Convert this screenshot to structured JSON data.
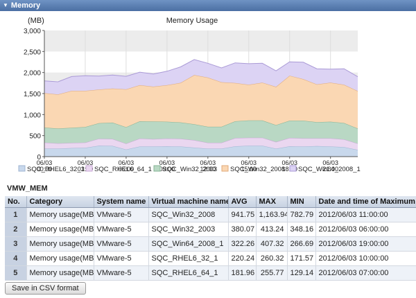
{
  "panel": {
    "title": "Memory"
  },
  "chart_data": {
    "type": "area",
    "stacked": true,
    "title": "Memory Usage",
    "ylabel": "(MB)",
    "ylim": [
      0,
      3000
    ],
    "yticks": [
      0,
      500,
      1000,
      1500,
      2000,
      2500,
      3000
    ],
    "ytick_labels": [
      "0",
      "500",
      "1,000",
      "1,500",
      "2,000",
      "2,500",
      "3,000"
    ],
    "xtick_labels": [
      "06/03 00:00",
      "06/03 03:00",
      "06/03 06:00",
      "06/03 09:00",
      "06/03 12:00",
      "06/03 15:00",
      "06/03 18:00",
      "06/03 21:00"
    ],
    "xtick_positions": [
      0,
      3,
      6,
      9,
      12,
      15,
      18,
      21
    ],
    "x": [
      0,
      1,
      2,
      3,
      4,
      5,
      6,
      7,
      8,
      9,
      10,
      11,
      12,
      13,
      14,
      15,
      16,
      17,
      18,
      19,
      20,
      21,
      22,
      23
    ],
    "threshold_bands": [
      {
        "from": 1800,
        "to": 2000,
        "color": "#ececec"
      },
      {
        "from": 2500,
        "to": 3000,
        "color": "#ececec"
      }
    ],
    "legend_position": "bottom",
    "series": [
      {
        "name": "SQC_RHEL6_32_1",
        "color": "#c8d8ec",
        "stroke": "#9fb5d2",
        "values": [
          190,
          190,
          205,
          210,
          260,
          255,
          170,
          240,
          240,
          245,
          240,
          215,
          190,
          190,
          245,
          260,
          260,
          190,
          245,
          240,
          250,
          240,
          225,
          160
        ]
      },
      {
        "name": "SQC_RHEL6_64_1",
        "color": "#ead7f0",
        "stroke": "#c8a8d6",
        "values": [
          145,
          125,
          120,
          125,
          165,
          165,
          140,
          190,
          175,
          185,
          185,
          175,
          140,
          140,
          195,
          190,
          190,
          160,
          200,
          195,
          185,
          195,
          185,
          150
        ]
      },
      {
        "name": "SQC_Win32_2003",
        "color": "#b9d8c4",
        "stroke": "#86b395",
        "values": [
          355,
          355,
          360,
          370,
          370,
          390,
          390,
          410,
          420,
          400,
          390,
          380,
          380,
          380,
          400,
          410,
          410,
          400,
          410,
          420,
          385,
          395,
          390,
          360
        ]
      },
      {
        "name": "SQC_Win32_2008",
        "color": "#fad7b3",
        "stroke": "#e0aa7a",
        "values": [
          820,
          810,
          880,
          860,
          800,
          810,
          900,
          860,
          830,
          870,
          940,
          1170,
          1170,
          1060,
          910,
          850,
          900,
          910,
          1070,
          990,
          900,
          930,
          910,
          890
        ]
      },
      {
        "name": "SQC_Win64_2008_1",
        "color": "#dcd3f4",
        "stroke": "#aa9ad6",
        "values": [
          290,
          300,
          340,
          360,
          320,
          320,
          310,
          310,
          300,
          330,
          380,
          370,
          340,
          340,
          480,
          500,
          460,
          380,
          330,
          400,
          370,
          320,
          380,
          340
        ]
      }
    ]
  },
  "table": {
    "title": "VMW_MEM",
    "columns": [
      "No.",
      "Category",
      "System name",
      "Virtual machine name",
      "AVG",
      "MAX",
      "MIN",
      "Date and time of Maximum value"
    ],
    "rows": [
      [
        "1",
        "Memory usage(MB)",
        "VMware-5",
        "SQC_Win32_2008",
        "941.75",
        "1,163.94",
        "782.79",
        "2012/06/03 11:00:00"
      ],
      [
        "2",
        "Memory usage(MB)",
        "VMware-5",
        "SQC_Win32_2003",
        "380.07",
        "413.24",
        "348.16",
        "2012/06/03 06:00:00"
      ],
      [
        "3",
        "Memory usage(MB)",
        "VMware-5",
        "SQC_Win64_2008_1",
        "322.26",
        "407.32",
        "266.69",
        "2012/06/03 19:00:00"
      ],
      [
        "4",
        "Memory usage(MB)",
        "VMware-5",
        "SQC_RHEL6_32_1",
        "220.24",
        "260.32",
        "171.57",
        "2012/06/03 10:00:00"
      ],
      [
        "5",
        "Memory usage(MB)",
        "VMware-5",
        "SQC_RHEL6_64_1",
        "181.96",
        "255.77",
        "129.14",
        "2012/06/03 07:00:00"
      ]
    ]
  },
  "actions": {
    "csv_label": "Save in CSV format"
  }
}
